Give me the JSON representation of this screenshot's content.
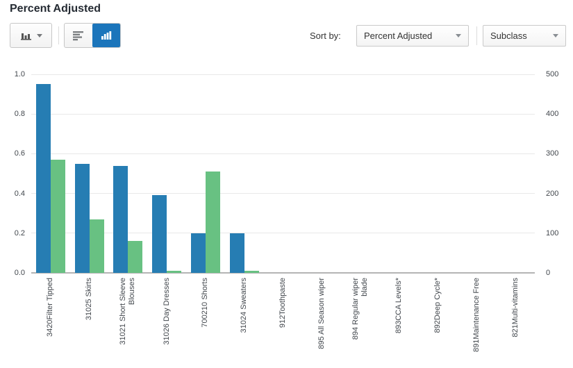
{
  "header": {
    "title": "Percent Adjusted"
  },
  "toolbar": {
    "chart_type_button": {
      "icon": "bar-chart-icon",
      "caret": "chevron-down-icon"
    },
    "view_toggle": {
      "options": [
        {
          "icon": "horizontal-bar-chart-icon",
          "selected": false
        },
        {
          "icon": "vertical-bar-chart-icon",
          "selected": true
        }
      ]
    },
    "sort_by_label": "Sort by:",
    "sort_field_dropdown": {
      "value": "Percent Adjusted"
    },
    "group_dropdown": {
      "value": "Subclass"
    }
  },
  "colors": {
    "bar_blue": "#267db3",
    "bar_green": "#68c182",
    "selected_button_blue": "#1b75bb"
  },
  "chart_data": {
    "type": "bar",
    "title": "Percent Adjusted",
    "legend": false,
    "grid": true,
    "categories": [
      "3420Filter Tipped",
      "31025 Skirts",
      "31021 Short Sleeve Blouses",
      "31026 Day Dresses",
      "700210 Shorts",
      "31024 Sweaters",
      "912Toothpaste",
      "895 All Season wiper",
      "894 Regular wiper blade",
      "893CCA Levels*",
      "892Deep Cycle*",
      "891Maintenance Free",
      "821Multi-vitamins"
    ],
    "categories_lines": [
      [
        "3420Filter Tipped"
      ],
      [
        "31025 Skirts"
      ],
      [
        "31021 Short Sleeve",
        "Blouses"
      ],
      [
        "31026 Day Dresses"
      ],
      [
        "700210 Shorts"
      ],
      [
        "31024 Sweaters"
      ],
      [
        "912Toothpaste"
      ],
      [
        "895 All Season wiper"
      ],
      [
        "894 Regular wiper",
        "blade"
      ],
      [
        "893CCA Levels*"
      ],
      [
        "892Deep Cycle*"
      ],
      [
        "891Maintenance Free"
      ],
      [
        "821Multi-vitamins"
      ]
    ],
    "series": [
      {
        "name": "series-1-blue",
        "color": "#267db3",
        "axis": "left",
        "values": [
          0.95,
          0.55,
          0.54,
          0.39,
          0.2,
          0.2,
          0,
          0,
          0,
          0,
          0,
          0,
          0
        ]
      },
      {
        "name": "series-2-green",
        "color": "#68c182",
        "axis": "left",
        "values": [
          0.57,
          0.27,
          0.16,
          0.01,
          0.51,
          0.01,
          0,
          0,
          0,
          0,
          0,
          0,
          0
        ]
      }
    ],
    "left_axis": {
      "range": [
        0,
        1
      ],
      "ticks": [
        "1.0",
        "0.8",
        "0.6",
        "0.4",
        "0.2",
        "0.0"
      ]
    },
    "right_axis": {
      "range": [
        0,
        500
      ],
      "ticks": [
        "500",
        "400",
        "300",
        "200",
        "100",
        "0"
      ]
    }
  }
}
